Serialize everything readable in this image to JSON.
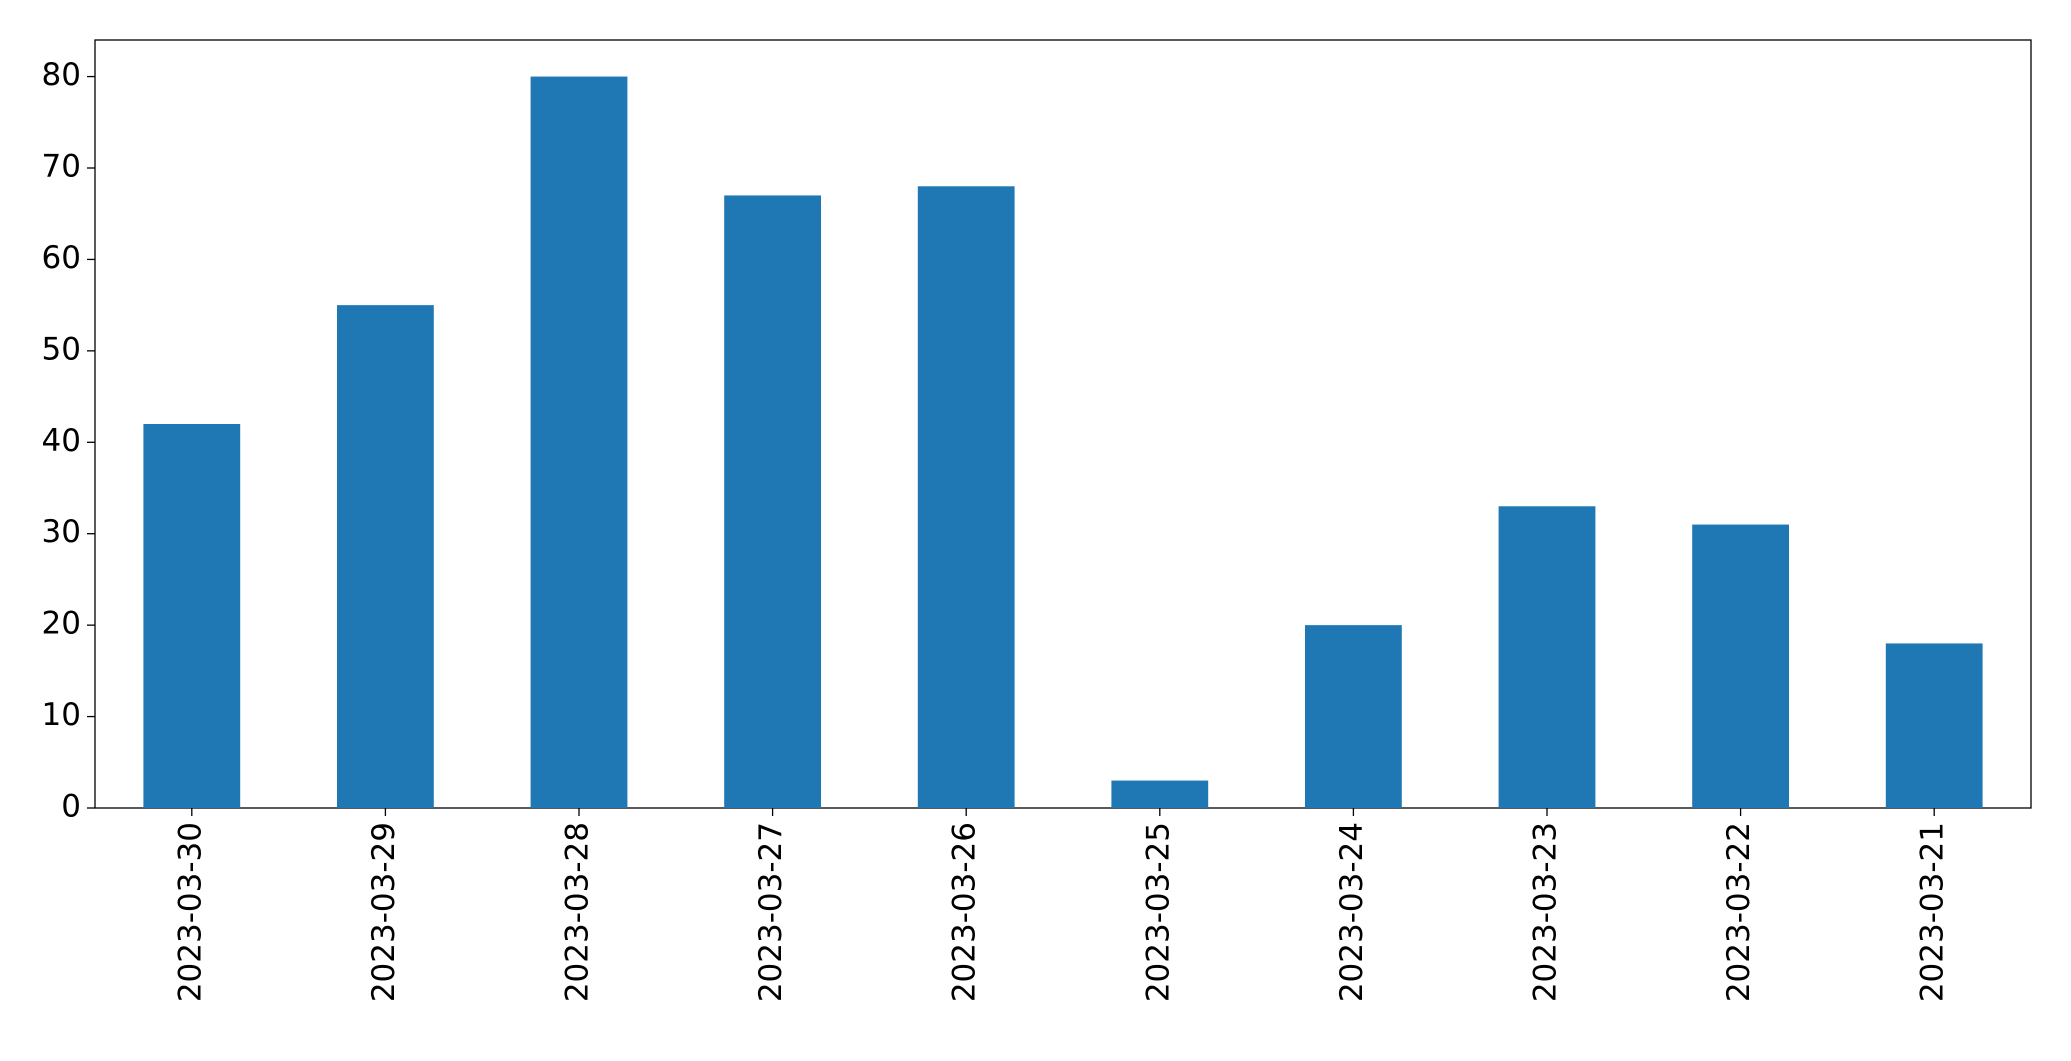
{
  "chart_data": {
    "type": "bar",
    "categories": [
      "2023-03-30",
      "2023-03-29",
      "2023-03-28",
      "2023-03-27",
      "2023-03-26",
      "2023-03-25",
      "2023-03-24",
      "2023-03-23",
      "2023-03-22",
      "2023-03-21"
    ],
    "values": [
      42,
      55,
      80,
      67,
      68,
      3,
      20,
      33,
      31,
      18
    ],
    "color": "#1f77b4",
    "ylim": [
      0,
      84
    ],
    "yticks": [
      0,
      10,
      20,
      30,
      40,
      50,
      60,
      70,
      80
    ],
    "grid": false
  }
}
